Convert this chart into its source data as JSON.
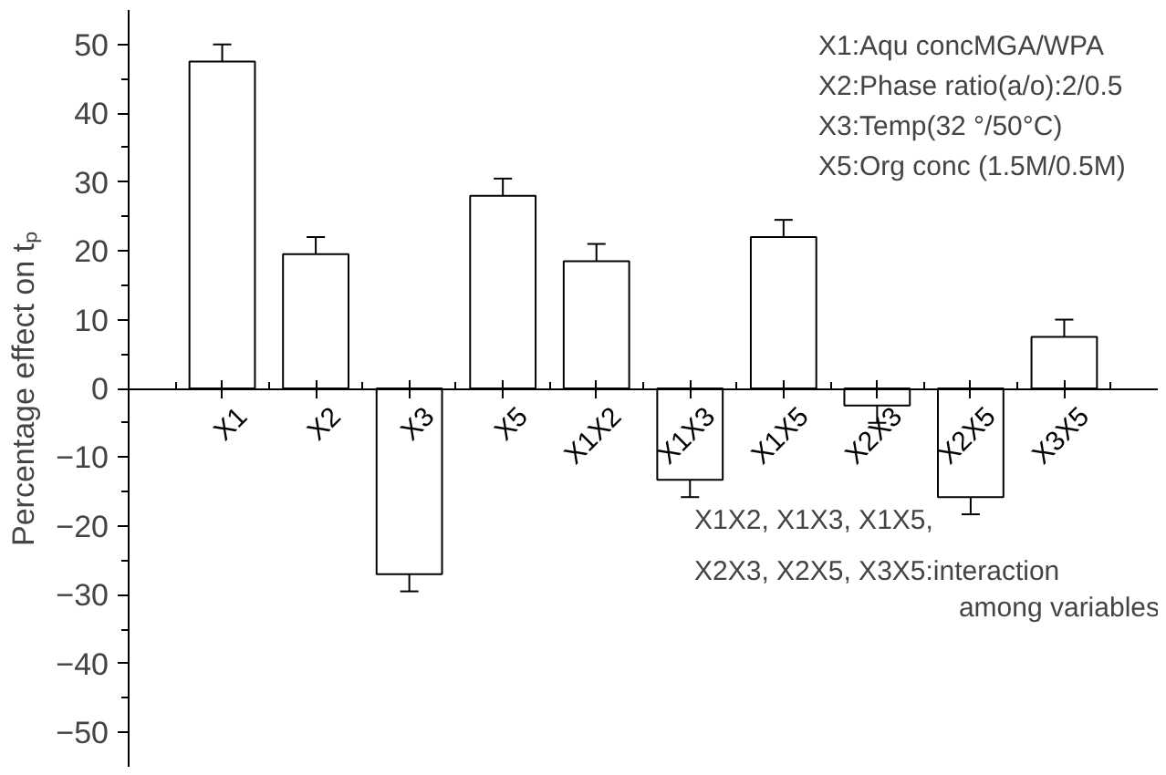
{
  "chart_data": {
    "type": "bar",
    "ylabel": "Percentage effect on tₚ",
    "categories": [
      "X1",
      "X2",
      "X3",
      "X5",
      "X1X2",
      "X1X3",
      "X1X5",
      "X2X3",
      "X2X5",
      "X3X5"
    ],
    "values": [
      47.5,
      19.5,
      -27,
      28,
      18.5,
      -13.3,
      22,
      -2.5,
      -15.8,
      7.5
    ],
    "errors": [
      2.5,
      2.5,
      2.5,
      2.5,
      2.5,
      2.5,
      2.5,
      2.5,
      2.5,
      2.5
    ],
    "color": "#ffffff",
    "ylim": [
      -55,
      55
    ],
    "yticks": [
      {
        "value": -50,
        "label": "−50"
      },
      {
        "value": -40,
        "label": "−40"
      },
      {
        "value": -30,
        "label": "−30"
      },
      {
        "value": -20,
        "label": "−20"
      },
      {
        "value": -10,
        "label": "−10"
      },
      0,
      10,
      20,
      30,
      40,
      50
    ],
    "grid": false,
    "annotations": [
      "X1:Aqu concMGA/WPA",
      "X2:Phase ratio(a/o):2/0.5",
      "X3:Temp(32 °/50°C)",
      "X5:Org conc (1.5M/0.5M)",
      "X1X2, X1X3, X1X5,",
      "X2X3, X2X5, X3X5:interaction",
      "among variables"
    ]
  }
}
